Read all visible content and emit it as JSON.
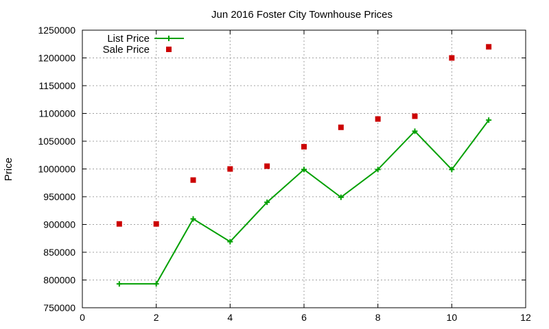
{
  "chart_data": {
    "type": "line",
    "title": "Jun 2016 Foster City Townhouse Prices",
    "xlabel": "",
    "ylabel": "Price",
    "xlim": [
      0,
      12
    ],
    "ylim": [
      750000,
      1250000
    ],
    "x_ticks": [
      0,
      2,
      4,
      6,
      8,
      10,
      12
    ],
    "y_ticks": [
      750000,
      800000,
      850000,
      900000,
      950000,
      1000000,
      1050000,
      1100000,
      1150000,
      1200000,
      1250000
    ],
    "grid": true,
    "legend_position": "top-left",
    "series": [
      {
        "name": "List Price",
        "style": "line-with-plus-markers",
        "color": "#00a000",
        "x": [
          1,
          2,
          3,
          4,
          5,
          6,
          7,
          8,
          9,
          10,
          11
        ],
        "y": [
          793000,
          793000,
          910000,
          869000,
          940000,
          999000,
          949000,
          999000,
          1068000,
          999000,
          1088000
        ]
      },
      {
        "name": "Sale Price",
        "style": "square-markers",
        "color": "#cc0000",
        "x": [
          1,
          2,
          3,
          4,
          5,
          6,
          7,
          8,
          9,
          10,
          11
        ],
        "y": [
          901000,
          901000,
          980000,
          1000000,
          1005000,
          1040000,
          1075000,
          1090000,
          1095000,
          1200000,
          1220000
        ]
      }
    ]
  }
}
